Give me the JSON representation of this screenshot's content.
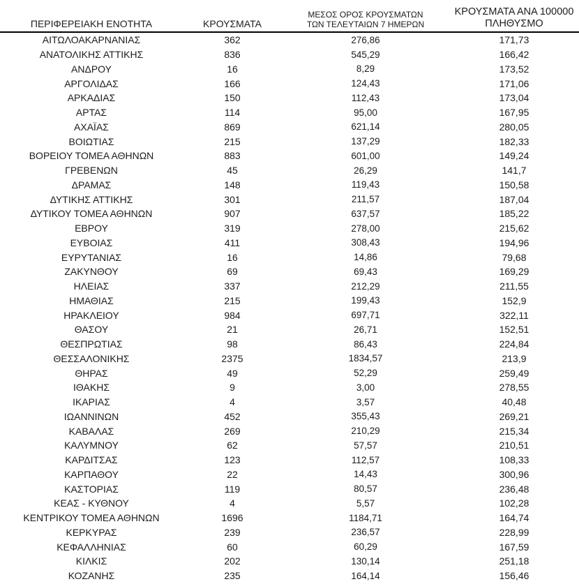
{
  "table": {
    "colors": {
      "background": "#ffffff",
      "text": "#1c1c1c",
      "header_rule": "#000000"
    },
    "header": {
      "region": "ΠΕΡΙΦΕΡΕΙΑΚΗ ΕΝΟΤΗΤΑ",
      "cases": "ΚΡΟΥΣΜΑΤΑ",
      "avg7_line1": "ΜΕΣΟΣ ΟΡΟΣ ΚΡΟΥΣΜΑΤΩΝ",
      "avg7_line2": "ΤΩΝ ΤΕΛΕΥΤΑΙΩΝ 7 ΗΜΕΡΩΝ",
      "per100k_line1": "ΚΡΟΥΣΜΑΤΑ ΑΝΑ 100000",
      "per100k_line2": "ΠΛΗΘΥΣΜΟ"
    },
    "rows": [
      {
        "region": "ΑΙΤΩΛΟΑΚΑΡΝΑΝΙΑΣ",
        "cases": "362",
        "avg7": "276,86",
        "per100k": "171,73"
      },
      {
        "region": "ΑΝΑΤΟΛΙΚΗΣ ΑΤΤΙΚΗΣ",
        "cases": "836",
        "avg7": "545,29",
        "per100k": "166,42"
      },
      {
        "region": "ΑΝΔΡΟΥ",
        "cases": "16",
        "avg7": "8,29",
        "per100k": "173,52"
      },
      {
        "region": "ΑΡΓΟΛΙΔΑΣ",
        "cases": "166",
        "avg7": "124,43",
        "per100k": "171,06"
      },
      {
        "region": "ΑΡΚΑΔΙΑΣ",
        "cases": "150",
        "avg7": "112,43",
        "per100k": "173,04"
      },
      {
        "region": "ΑΡΤΑΣ",
        "cases": "114",
        "avg7": "95,00",
        "per100k": "167,95"
      },
      {
        "region": "ΑΧΑΪΑΣ",
        "cases": "869",
        "avg7": "621,14",
        "per100k": "280,05"
      },
      {
        "region": "ΒΟΙΩΤΙΑΣ",
        "cases": "215",
        "avg7": "137,29",
        "per100k": "182,33"
      },
      {
        "region": "ΒΟΡΕΙΟΥ ΤΟΜΕΑ ΑΘΗΝΩΝ",
        "cases": "883",
        "avg7": "601,00",
        "per100k": "149,24"
      },
      {
        "region": "ΓΡΕΒΕΝΩΝ",
        "cases": "45",
        "avg7": "26,29",
        "per100k": "141,7"
      },
      {
        "region": "ΔΡΑΜΑΣ",
        "cases": "148",
        "avg7": "119,43",
        "per100k": "150,58"
      },
      {
        "region": "ΔΥΤΙΚΗΣ ΑΤΤΙΚΗΣ",
        "cases": "301",
        "avg7": "211,57",
        "per100k": "187,04"
      },
      {
        "region": "ΔΥΤΙΚΟΥ ΤΟΜΕΑ ΑΘΗΝΩΝ",
        "cases": "907",
        "avg7": "637,57",
        "per100k": "185,22"
      },
      {
        "region": "ΕΒΡΟΥ",
        "cases": "319",
        "avg7": "278,00",
        "per100k": "215,62"
      },
      {
        "region": "ΕΥΒΟΙΑΣ",
        "cases": "411",
        "avg7": "308,43",
        "per100k": "194,96"
      },
      {
        "region": "ΕΥΡΥΤΑΝΙΑΣ",
        "cases": "16",
        "avg7": "14,86",
        "per100k": "79,68"
      },
      {
        "region": "ΖΑΚΥΝΘΟΥ",
        "cases": "69",
        "avg7": "69,43",
        "per100k": "169,29"
      },
      {
        "region": "ΗΛΕΙΑΣ",
        "cases": "337",
        "avg7": "212,29",
        "per100k": "211,55"
      },
      {
        "region": "ΗΜΑΘΙΑΣ",
        "cases": "215",
        "avg7": "199,43",
        "per100k": "152,9"
      },
      {
        "region": "ΗΡΑΚΛΕΙΟΥ",
        "cases": "984",
        "avg7": "697,71",
        "per100k": "322,11"
      },
      {
        "region": "ΘΑΣΟΥ",
        "cases": "21",
        "avg7": "26,71",
        "per100k": "152,51"
      },
      {
        "region": "ΘΕΣΠΡΩΤΙΑΣ",
        "cases": "98",
        "avg7": "86,43",
        "per100k": "224,84"
      },
      {
        "region": "ΘΕΣΣΑΛΟΝΙΚΗΣ",
        "cases": "2375",
        "avg7": "1834,57",
        "per100k": "213,9"
      },
      {
        "region": "ΘΗΡΑΣ",
        "cases": "49",
        "avg7": "52,29",
        "per100k": "259,49"
      },
      {
        "region": "ΙΘΑΚΗΣ",
        "cases": "9",
        "avg7": "3,00",
        "per100k": "278,55"
      },
      {
        "region": "ΙΚΑΡΙΑΣ",
        "cases": "4",
        "avg7": "3,57",
        "per100k": "40,48"
      },
      {
        "region": "ΙΩΑΝΝΙΝΩΝ",
        "cases": "452",
        "avg7": "355,43",
        "per100k": "269,21"
      },
      {
        "region": "ΚΑΒΑΛΑΣ",
        "cases": "269",
        "avg7": "210,29",
        "per100k": "215,34"
      },
      {
        "region": "ΚΑΛΥΜΝΟΥ",
        "cases": "62",
        "avg7": "57,57",
        "per100k": "210,51"
      },
      {
        "region": "ΚΑΡΔΙΤΣΑΣ",
        "cases": "123",
        "avg7": "112,57",
        "per100k": "108,33"
      },
      {
        "region": "ΚΑΡΠΑΘΟΥ",
        "cases": "22",
        "avg7": "14,43",
        "per100k": "300,96"
      },
      {
        "region": "ΚΑΣΤΟΡΙΑΣ",
        "cases": "119",
        "avg7": "80,57",
        "per100k": "236,48"
      },
      {
        "region": "ΚΕΑΣ - ΚΥΘΝΟΥ",
        "cases": "4",
        "avg7": "5,57",
        "per100k": "102,28"
      },
      {
        "region": "ΚΕΝΤΡΙΚΟΥ ΤΟΜΕΑ ΑΘΗΝΩΝ",
        "cases": "1696",
        "avg7": "1184,71",
        "per100k": "164,74"
      },
      {
        "region": "ΚΕΡΚΥΡΑΣ",
        "cases": "239",
        "avg7": "236,57",
        "per100k": "228,99"
      },
      {
        "region": "ΚΕΦΑΛΛΗΝΙΑΣ",
        "cases": "60",
        "avg7": "60,29",
        "per100k": "167,59"
      },
      {
        "region": "ΚΙΛΚΙΣ",
        "cases": "202",
        "avg7": "130,14",
        "per100k": "251,18"
      },
      {
        "region": "ΚΟΖΑΝΗΣ",
        "cases": "235",
        "avg7": "164,14",
        "per100k": "156,46"
      }
    ]
  }
}
